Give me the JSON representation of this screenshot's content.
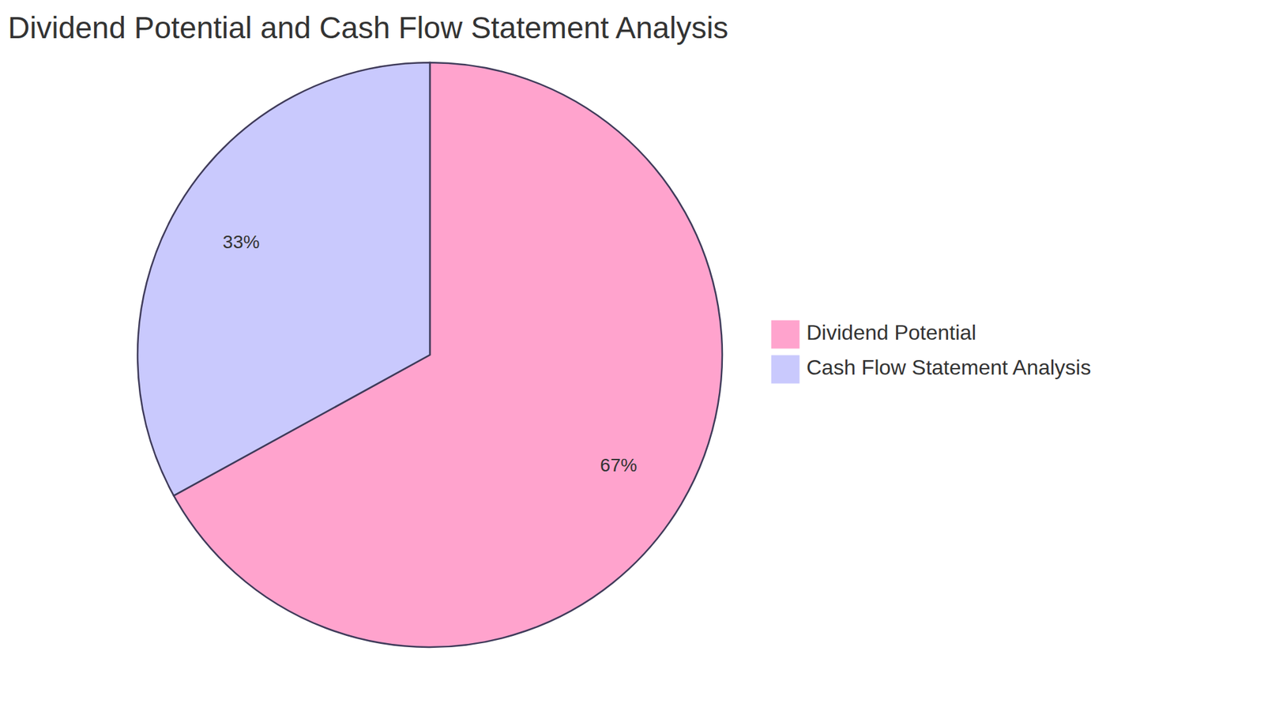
{
  "chart_data": {
    "type": "pie",
    "title": "Dividend Potential and Cash Flow Statement Analysis",
    "categories": [
      "Dividend Potential",
      "Cash Flow Statement Analysis"
    ],
    "values": [
      67,
      33
    ],
    "value_labels": [
      "67%",
      "33%"
    ],
    "colors": [
      "#ffa3cd",
      "#c9c9fd"
    ],
    "data_labels": true,
    "legend": "right"
  }
}
